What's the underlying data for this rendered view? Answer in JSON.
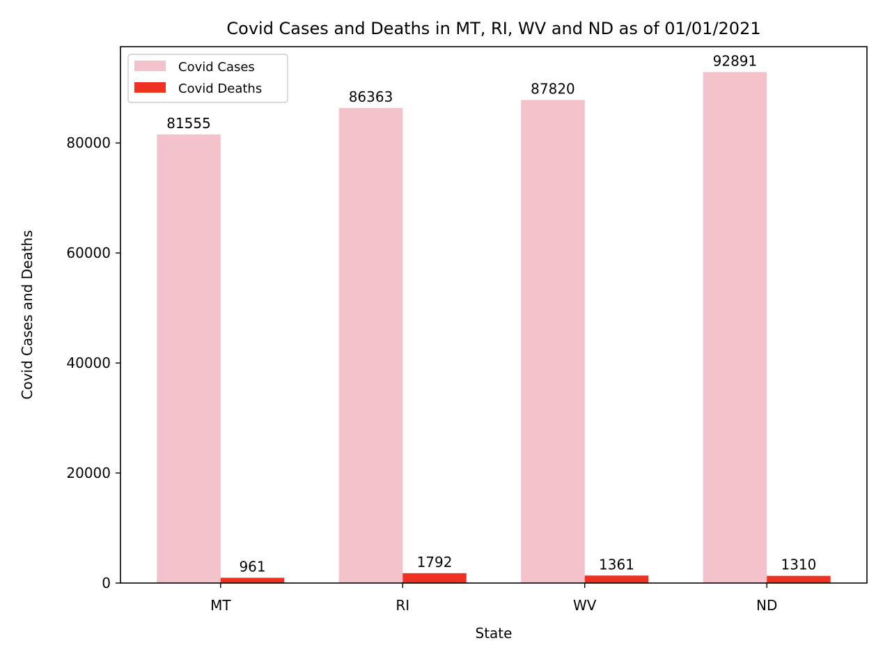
{
  "chart_data": {
    "type": "bar",
    "title": "Covid Cases and Deaths in MT, RI, WV and ND as of 01/01/2021",
    "xlabel": "State",
    "ylabel": "Covid Cases and Deaths",
    "categories": [
      "MT",
      "RI",
      "WV",
      "ND"
    ],
    "series": [
      {
        "name": "Covid Cases",
        "values": [
          81555,
          86363,
          87820,
          92891
        ],
        "color": "#f4c2ca"
      },
      {
        "name": "Covid Deaths",
        "values": [
          961,
          1792,
          1361,
          1310
        ],
        "color": "#ee3124"
      }
    ],
    "ylim": [
      0,
      97500
    ],
    "yticks": [
      0,
      20000,
      40000,
      60000,
      80000
    ],
    "grid": false,
    "legend_position": "upper-left"
  }
}
